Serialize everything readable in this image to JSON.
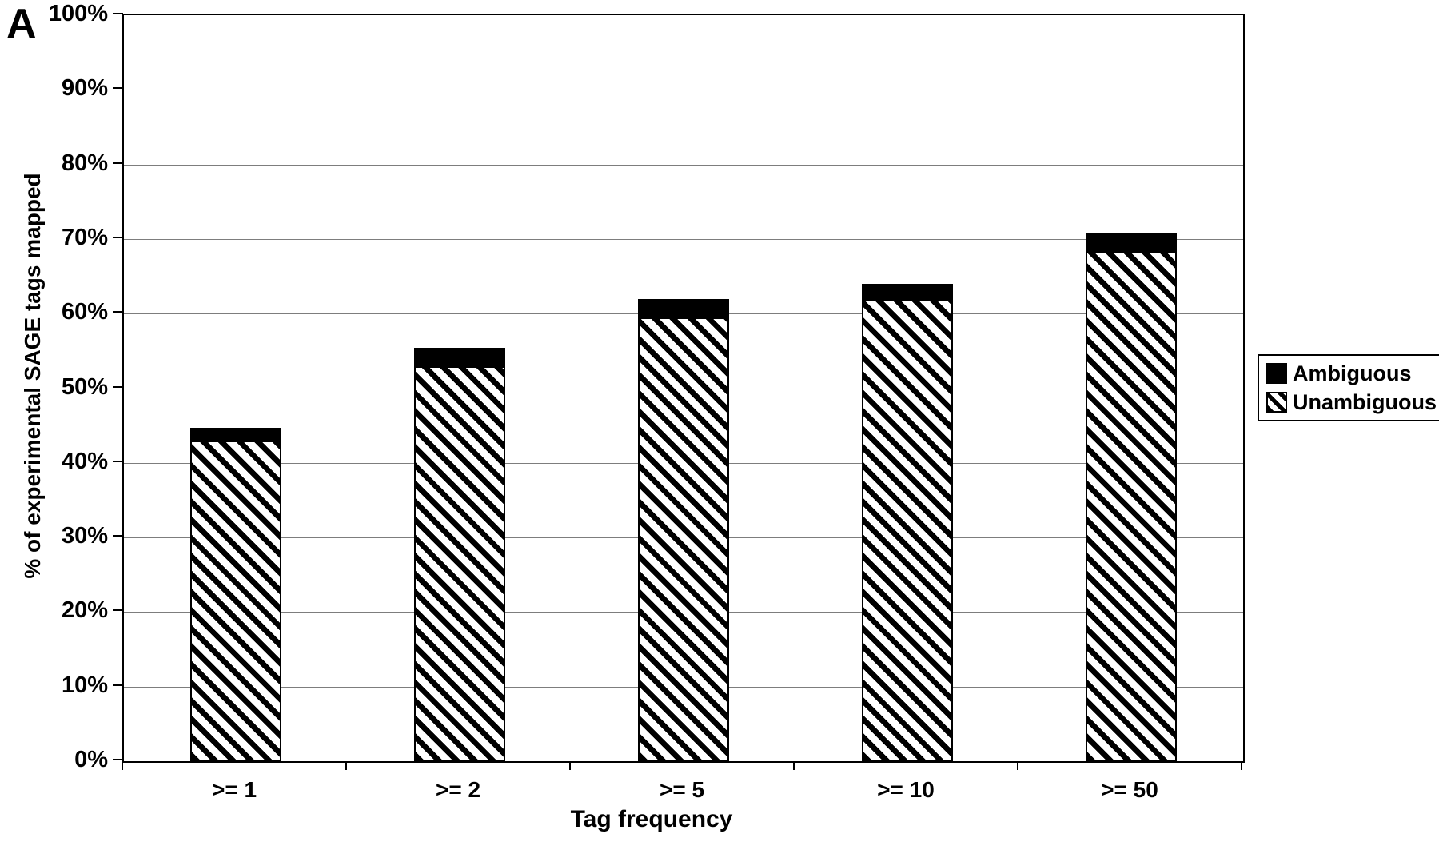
{
  "panel_label": "A",
  "chart_data": {
    "type": "bar",
    "stacked": true,
    "title": "",
    "xlabel": "Tag frequency",
    "ylabel": "% of experimental SAGE tags mapped",
    "categories": [
      ">= 1",
      ">= 2",
      ">= 5",
      ">= 10",
      ">= 50"
    ],
    "series": [
      {
        "name": "Unambiguous",
        "style": "diagonal-hatch",
        "values": [
          43.0,
          53.0,
          59.5,
          61.8,
          68.3
        ]
      },
      {
        "name": "Ambiguous",
        "style": "solid-black",
        "values": [
          1.7,
          2.4,
          2.5,
          2.2,
          2.4
        ]
      }
    ],
    "stack_totals": [
      44.7,
      55.4,
      62.0,
      64.0,
      70.7
    ],
    "ylim": [
      0,
      100
    ],
    "ytick_step": 10,
    "y_ticks": [
      "0%",
      "10%",
      "20%",
      "30%",
      "40%",
      "50%",
      "60%",
      "70%",
      "80%",
      "90%",
      "100%"
    ],
    "grid": true,
    "legend_position": "right",
    "colors": {
      "bar_outline": "#000000",
      "gridline": "#7d7d7d",
      "background": "#ffffff"
    }
  },
  "legend": {
    "items": [
      {
        "label": "Ambiguous",
        "swatch": "solid-black-square"
      },
      {
        "label": "Unambiguous",
        "swatch": "hatched-square"
      }
    ]
  }
}
